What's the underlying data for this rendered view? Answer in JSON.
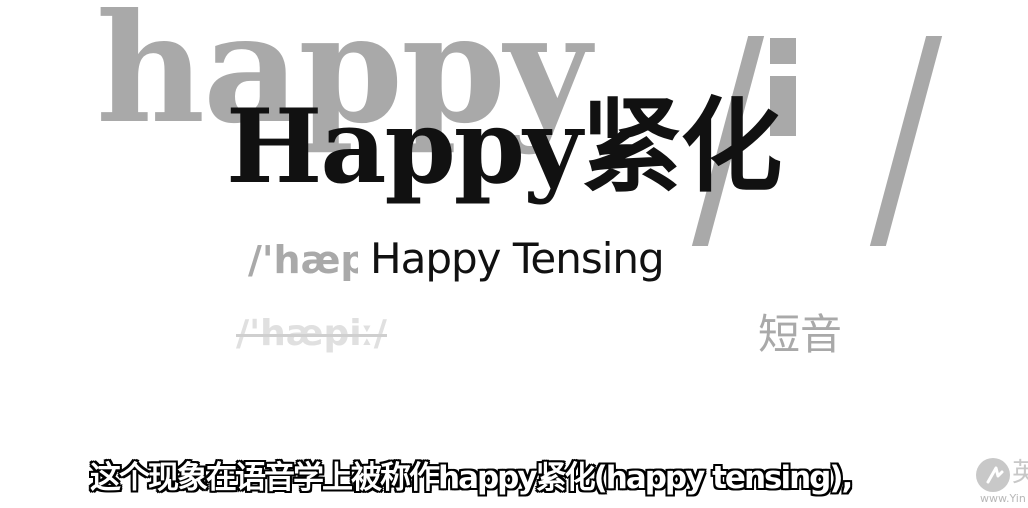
{
  "background": {
    "word": "happy",
    "slash_left": "/",
    "slash_right": "/"
  },
  "title": {
    "main": "Happy紧化",
    "english": "Happy Tensing"
  },
  "phonetics": {
    "partial": "/'hæp",
    "struck": "/'hæpiː/",
    "short_vowel_label": "短音"
  },
  "subtitle": {
    "text": "这个现象在语音学上被称作happy紧化(happy tensing),"
  },
  "watermark": {
    "char": "英",
    "url": "www.Yin"
  },
  "colors": {
    "background": "#ffffff",
    "title": "#111111",
    "faded": "#a9a9a9",
    "struck": "#e0e0e0",
    "caption_fill": "#ffffff",
    "caption_outline": "#000000"
  }
}
